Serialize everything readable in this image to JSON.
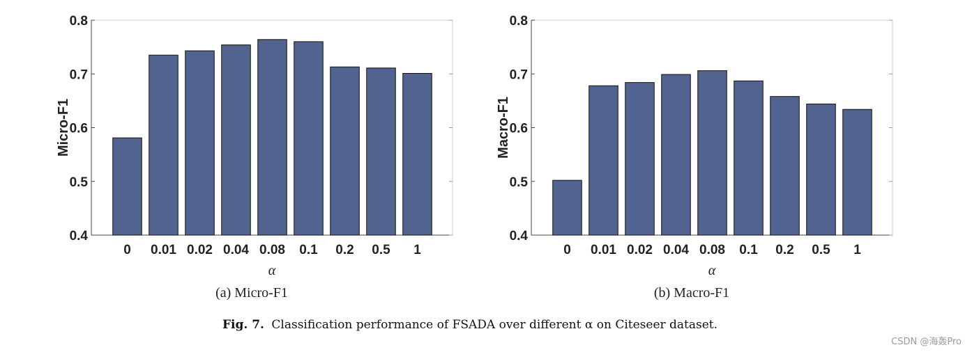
{
  "figure": {
    "caption_label": "Fig. 7.",
    "caption_text": "Classification performance of FSADA over different α on Citeseer dataset.",
    "watermark": "CSDN @海轰Pro"
  },
  "chart_data": [
    {
      "type": "bar",
      "title": "",
      "subcaption": "(a)  Micro-F1",
      "xlabel": "α",
      "ylabel": "Micro-F1",
      "categories": [
        "0",
        "0.01",
        "0.02",
        "0.04",
        "0.08",
        "0.1",
        "0.2",
        "0.5",
        "1"
      ],
      "values": [
        0.581,
        0.735,
        0.743,
        0.754,
        0.764,
        0.76,
        0.713,
        0.711,
        0.701
      ],
      "ylim": [
        0.4,
        0.8
      ],
      "yticks": [
        0.4,
        0.5,
        0.6,
        0.7,
        0.8
      ],
      "ytick_labels": [
        "0.4",
        "0.5",
        "0.6",
        "0.7",
        "0.8"
      ],
      "bar_color": "#52638f",
      "grid": false
    },
    {
      "type": "bar",
      "title": "",
      "subcaption": "(b)  Macro-F1",
      "xlabel": "α",
      "ylabel": "Macro-F1",
      "categories": [
        "0",
        "0.01",
        "0.02",
        "0.04",
        "0.08",
        "0.1",
        "0.2",
        "0.5",
        "1"
      ],
      "values": [
        0.502,
        0.678,
        0.684,
        0.699,
        0.706,
        0.687,
        0.658,
        0.644,
        0.634
      ],
      "ylim": [
        0.4,
        0.8
      ],
      "yticks": [
        0.4,
        0.5,
        0.6,
        0.7,
        0.8
      ],
      "ytick_labels": [
        "0.4",
        "0.5",
        "0.6",
        "0.7",
        "0.8"
      ],
      "bar_color": "#52638f",
      "grid": false
    }
  ]
}
